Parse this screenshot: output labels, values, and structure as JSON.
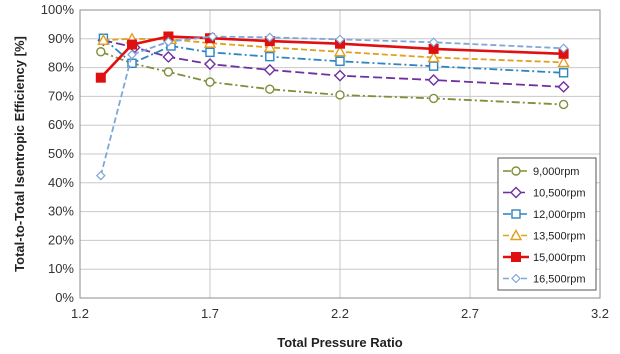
{
  "chart_data": {
    "type": "line",
    "title": "",
    "xlabel": "Total Pressure Ratio",
    "ylabel": "Total-to-Total Isentropic Efficiency [%]",
    "xlim": [
      1.2,
      3.2
    ],
    "ylim": [
      0,
      100
    ],
    "x_ticks": [
      "1.2",
      "1.7",
      "2.2",
      "2.7",
      "3.2"
    ],
    "x_tick_values": [
      1.2,
      1.7,
      2.2,
      2.7,
      3.2
    ],
    "y_ticks": [
      "0%",
      "10%",
      "20%",
      "30%",
      "40%",
      "50%",
      "60%",
      "70%",
      "80%",
      "90%",
      "100%"
    ],
    "y_tick_values": [
      0,
      10,
      20,
      30,
      40,
      50,
      60,
      70,
      80,
      90,
      100
    ],
    "grid": true,
    "legend_position": "bottom-right",
    "series": [
      {
        "name": "9,000rpm",
        "color": "#7f8f3a",
        "marker": "circle",
        "dash": "dashdot",
        "x": [
          1.28,
          1.4,
          1.54,
          1.7,
          1.93,
          2.2,
          2.56,
          3.06
        ],
        "y": [
          85.5,
          81.5,
          78.5,
          75.0,
          72.5,
          70.5,
          69.3,
          67.2
        ]
      },
      {
        "name": "10,500rpm",
        "color": "#7030a0",
        "marker": "diamond",
        "dash": "longdash",
        "x": [
          1.29,
          1.41,
          1.54,
          1.7,
          1.93,
          2.2,
          2.56,
          3.06
        ],
        "y": [
          89.5,
          87.0,
          83.7,
          81.2,
          79.2,
          77.2,
          75.7,
          73.3
        ]
      },
      {
        "name": "12,000rpm",
        "color": "#2e86c1",
        "marker": "square",
        "dash": "dashdot",
        "x": [
          1.29,
          1.4,
          1.55,
          1.7,
          1.93,
          2.2,
          2.56,
          3.06
        ],
        "y": [
          90.2,
          81.5,
          87.5,
          85.3,
          83.8,
          82.2,
          80.5,
          78.2
        ]
      },
      {
        "name": "13,500rpm",
        "color": "#e0a020",
        "marker": "triangle",
        "dash": "dash",
        "x": [
          1.29,
          1.4,
          1.55,
          1.7,
          1.93,
          2.2,
          2.56,
          3.06
        ],
        "y": [
          89.5,
          90.0,
          89.8,
          88.5,
          87.0,
          85.5,
          83.5,
          81.8
        ]
      },
      {
        "name": "15,000rpm",
        "color": "#e01010",
        "marker": "filled-square",
        "dash": "solid",
        "x": [
          1.28,
          1.4,
          1.54,
          1.7,
          1.93,
          2.2,
          2.56,
          3.06
        ],
        "y": [
          76.5,
          88.0,
          90.8,
          90.2,
          89.2,
          88.3,
          86.5,
          84.8
        ]
      },
      {
        "name": "16,500rpm",
        "color": "#7fa7d8",
        "marker": "small-diamond",
        "dash": "dash",
        "x": [
          1.28,
          1.4,
          1.54,
          1.71,
          1.93,
          2.2,
          2.56,
          3.06
        ],
        "y": [
          42.5,
          84.5,
          89.0,
          90.8,
          90.5,
          89.8,
          88.8,
          86.7
        ]
      }
    ]
  }
}
